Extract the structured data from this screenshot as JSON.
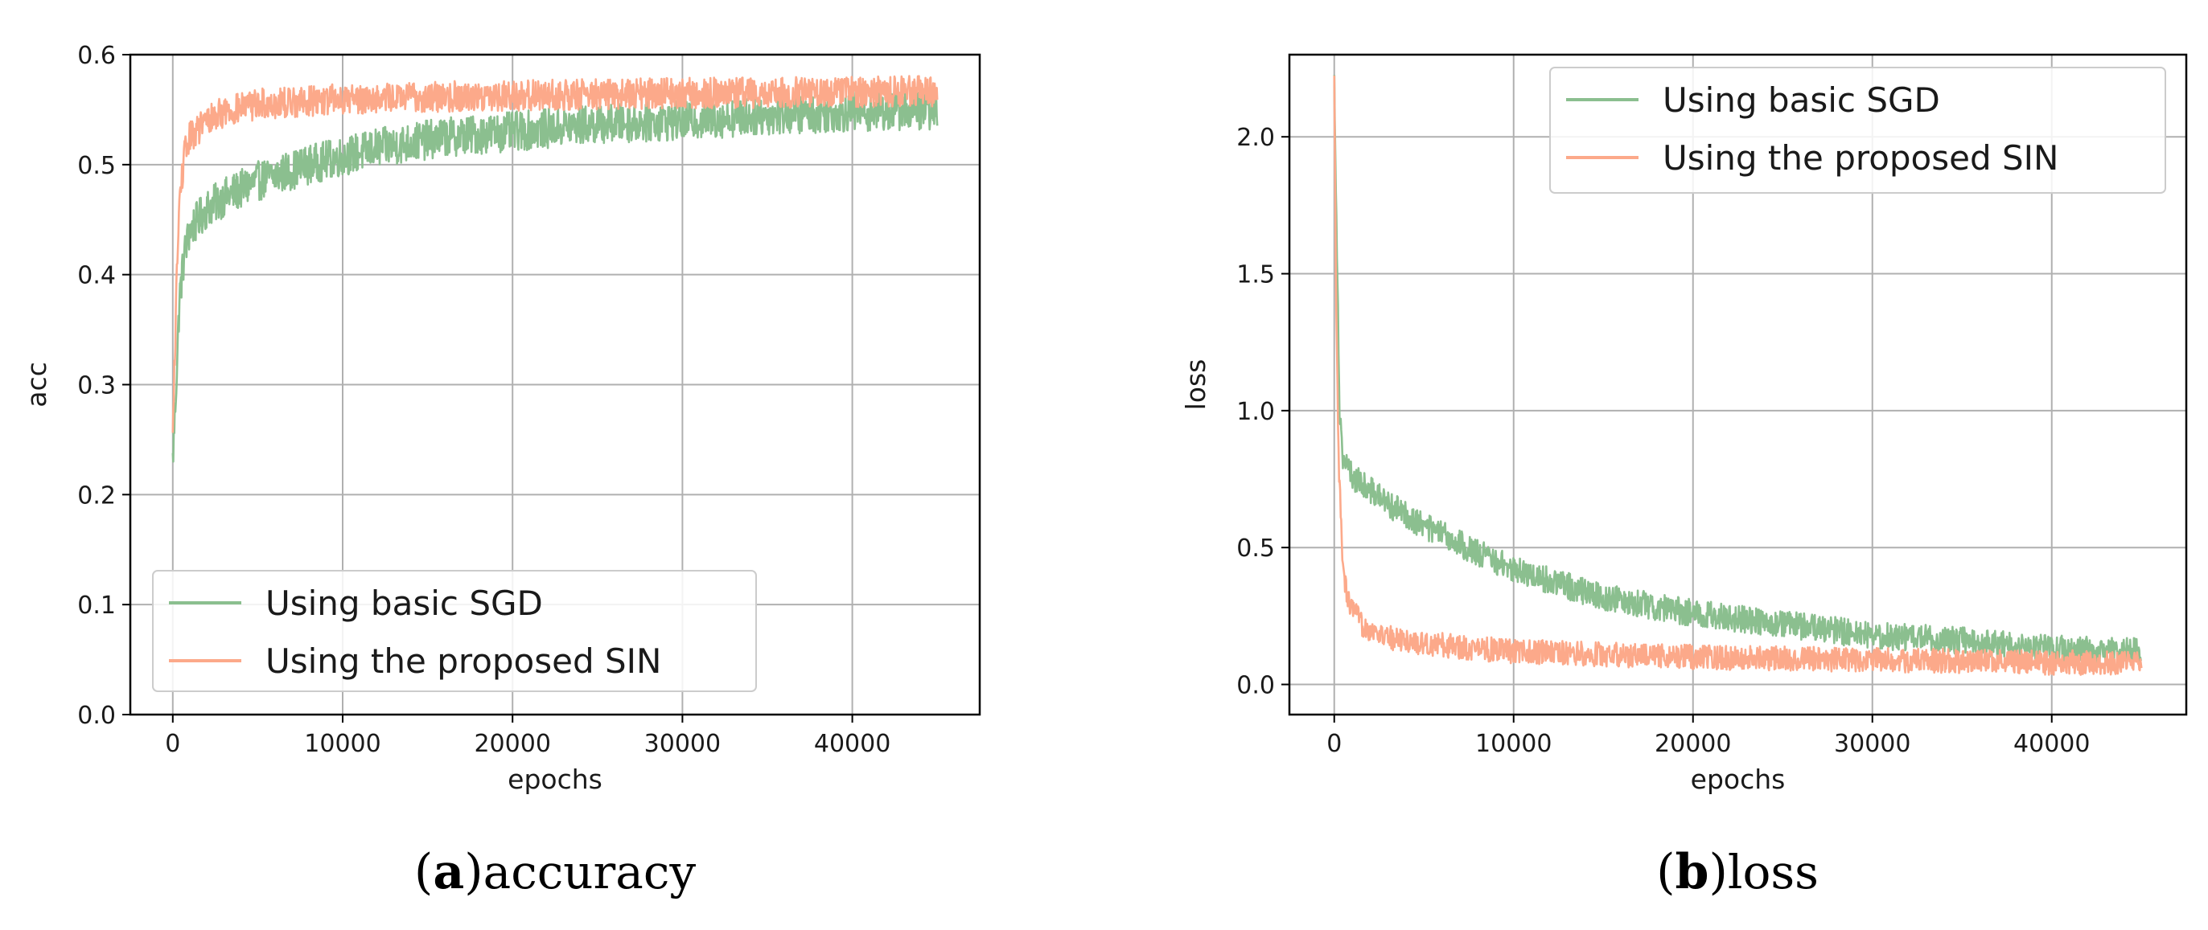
{
  "chart_data": [
    {
      "type": "line",
      "caption_letter": "a",
      "caption_text": "accuracy",
      "xlabel": "epochs",
      "ylabel": "acc",
      "xlim": [
        -2500,
        47500
      ],
      "ylim": [
        0.0,
        0.6
      ],
      "xticks": [
        0,
        10000,
        20000,
        30000,
        40000
      ],
      "xtick_labels": [
        "0",
        "10000",
        "20000",
        "30000",
        "40000"
      ],
      "yticks": [
        0.0,
        0.1,
        0.2,
        0.3,
        0.4,
        0.5,
        0.6
      ],
      "ytick_labels": [
        "0.0",
        "0.1",
        "0.2",
        "0.3",
        "0.4",
        "0.5",
        "0.6"
      ],
      "grid": true,
      "legend_position": "lower-left",
      "series": [
        {
          "name": "Using basic SGD",
          "color": "#8bbf8f",
          "points": [
            [
              0,
              0.23
            ],
            [
              200,
              0.3
            ],
            [
              400,
              0.38
            ],
            [
              700,
              0.42
            ],
            [
              1000,
              0.44
            ],
            [
              2000,
              0.46
            ],
            [
              3000,
              0.47
            ],
            [
              5000,
              0.485
            ],
            [
              8000,
              0.5
            ],
            [
              12000,
              0.515
            ],
            [
              16000,
              0.525
            ],
            [
              20000,
              0.53
            ],
            [
              25000,
              0.537
            ],
            [
              30000,
              0.54
            ],
            [
              35000,
              0.545
            ],
            [
              40000,
              0.548
            ],
            [
              45000,
              0.55
            ]
          ],
          "noise": 0.018
        },
        {
          "name": "Using the proposed SIN",
          "color": "#fca98a",
          "points": [
            [
              0,
              0.25
            ],
            [
              200,
              0.38
            ],
            [
              400,
              0.47
            ],
            [
              700,
              0.51
            ],
            [
              1000,
              0.525
            ],
            [
              2000,
              0.54
            ],
            [
              3000,
              0.548
            ],
            [
              5000,
              0.555
            ],
            [
              10000,
              0.56
            ],
            [
              20000,
              0.563
            ],
            [
              30000,
              0.565
            ],
            [
              40000,
              0.566
            ],
            [
              45000,
              0.567
            ]
          ],
          "noise": 0.014
        }
      ]
    },
    {
      "type": "line",
      "caption_letter": "b",
      "caption_text": "loss",
      "xlabel": "epochs",
      "ylabel": "loss",
      "xlim": [
        -2500,
        47500
      ],
      "ylim": [
        -0.11,
        2.3
      ],
      "xticks": [
        0,
        10000,
        20000,
        30000,
        40000
      ],
      "xtick_labels": [
        "0",
        "10000",
        "20000",
        "30000",
        "40000"
      ],
      "yticks": [
        0.0,
        0.5,
        1.0,
        1.5,
        2.0
      ],
      "ytick_labels": [
        "0.0",
        "0.5",
        "1.0",
        "1.5",
        "2.0"
      ],
      "grid": true,
      "legend_position": "top-right",
      "series": [
        {
          "name": "Using basic SGD",
          "color": "#8bbf8f",
          "points": [
            [
              0,
              2.2
            ],
            [
              150,
              1.6
            ],
            [
              300,
              1.0
            ],
            [
              500,
              0.82
            ],
            [
              1000,
              0.76
            ],
            [
              3000,
              0.66
            ],
            [
              5000,
              0.58
            ],
            [
              8000,
              0.48
            ],
            [
              10000,
              0.42
            ],
            [
              15000,
              0.32
            ],
            [
              20000,
              0.26
            ],
            [
              25000,
              0.22
            ],
            [
              30000,
              0.18
            ],
            [
              35000,
              0.16
            ],
            [
              40000,
              0.13
            ],
            [
              45000,
              0.12
            ]
          ],
          "noise": 0.05
        },
        {
          "name": "Using the proposed SIN",
          "color": "#fca98a",
          "points": [
            [
              0,
              2.2
            ],
            [
              100,
              1.4
            ],
            [
              250,
              0.8
            ],
            [
              500,
              0.4
            ],
            [
              800,
              0.3
            ],
            [
              1500,
              0.22
            ],
            [
              3000,
              0.17
            ],
            [
              5000,
              0.15
            ],
            [
              10000,
              0.12
            ],
            [
              20000,
              0.1
            ],
            [
              30000,
              0.09
            ],
            [
              40000,
              0.08
            ],
            [
              45000,
              0.08
            ]
          ],
          "noise": 0.045
        }
      ]
    }
  ]
}
